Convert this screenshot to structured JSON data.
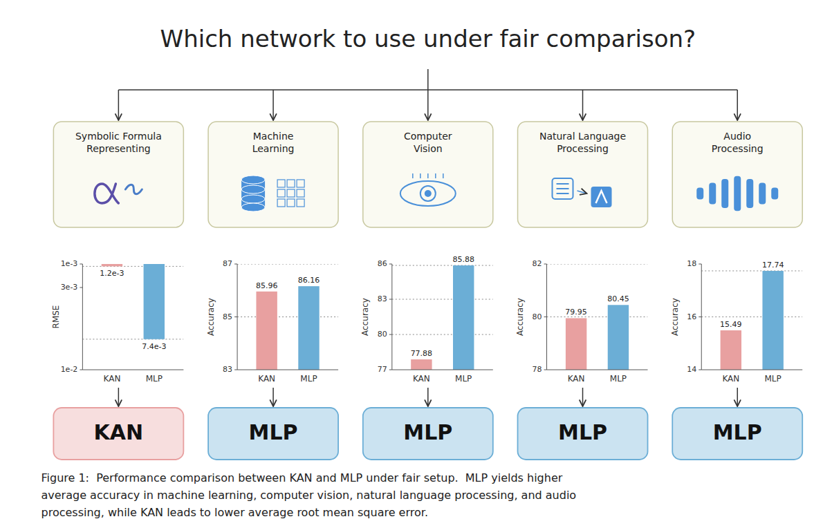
{
  "title": "Which network to use under fair comparison?",
  "caption": "Figure 1:  Performance comparison between KAN and MLP under fair setup.  MLP yields higher\naverage accuracy in machine learning, computer vision, natural language processing, and audio\nprocessing, while KAN leads to lower average root mean square error.",
  "chart_data": [
    {
      "type": "bar",
      "title": "Symbolic Formula\nRepresenting",
      "ylabel": "RMSE",
      "categories": [
        "KAN",
        "MLP"
      ],
      "values": [
        0.0012,
        0.0074
      ],
      "value_labels": [
        "1.2e-3",
        "7.4e-3"
      ],
      "colors": [
        "#e8a0a0",
        "#6baed6"
      ],
      "ylim": [
        0.01,
        0.001
      ],
      "yticks": [
        {
          "value": 0.001,
          "label": "1e-3"
        },
        {
          "value": 0.003,
          "label": "3e-3"
        },
        {
          "value": 0.01,
          "label": "1e-2"
        }
      ],
      "reference_lines": [
        0.0012,
        0.0074
      ],
      "data_labels": true,
      "annotation": "KAN"
    },
    {
      "type": "bar",
      "title": "Machine\nLearning",
      "ylabel": "Accuracy",
      "categories": [
        "KAN",
        "MLP"
      ],
      "values": [
        85.96,
        86.16
      ],
      "colors": [
        "#e8a0a0",
        "#6baed6"
      ],
      "ylim": [
        83,
        87
      ],
      "yticks": [
        83,
        85,
        87
      ],
      "reference_lines": [
        87,
        85
      ],
      "data_labels": true,
      "annotation": "MLP"
    },
    {
      "type": "bar",
      "title": "Computer\nVision",
      "ylabel": "Accuracy",
      "categories": [
        "KAN",
        "MLP"
      ],
      "values": [
        77.88,
        85.88
      ],
      "colors": [
        "#e8a0a0",
        "#6baed6"
      ],
      "ylim": [
        77,
        86
      ],
      "yticks": [
        77,
        80,
        83,
        86
      ],
      "reference_lines": [
        85.88,
        80,
        83
      ],
      "data_labels": true,
      "annotation": "MLP"
    },
    {
      "type": "bar",
      "title": "Natural Language\nProcessing",
      "ylabel": "Accuracy",
      "categories": [
        "KAN",
        "MLP"
      ],
      "values": [
        79.95,
        80.45
      ],
      "colors": [
        "#e8a0a0",
        "#6baed6"
      ],
      "ylim": [
        78,
        82
      ],
      "yticks": [
        78,
        80,
        82
      ],
      "reference_lines": [
        82,
        80
      ],
      "data_labels": true,
      "annotation": "MLP"
    },
    {
      "type": "bar",
      "title": "Audio\nProcessing",
      "ylabel": "Accuracy",
      "categories": [
        "KAN",
        "MLP"
      ],
      "values": [
        15.49,
        17.74
      ],
      "colors": [
        "#e8a0a0",
        "#6baed6"
      ],
      "ylim": [
        14,
        18
      ],
      "yticks": [
        14,
        16,
        18
      ],
      "reference_lines": [
        17.74,
        16
      ],
      "data_labels": true,
      "annotation": "MLP"
    }
  ]
}
